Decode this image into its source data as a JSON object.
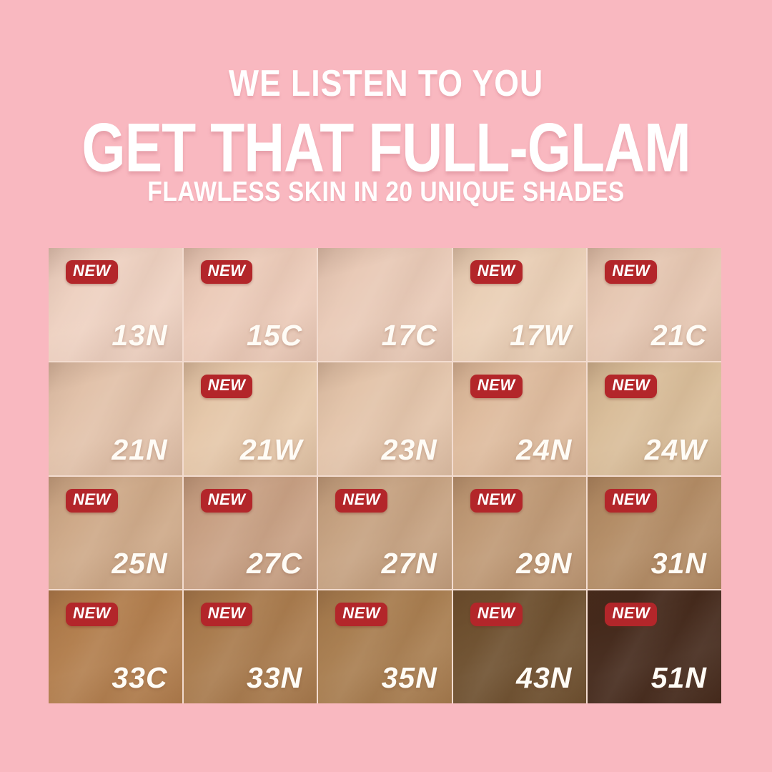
{
  "colors": {
    "background_pink": "#f9b8c0",
    "badge_red": "#b3262a",
    "text_white": "#ffffff",
    "grid_line": "#f3dcd0"
  },
  "header": {
    "tagline": "WE LISTEN TO YOU",
    "title": "GET THAT FULL-GLAM",
    "subtitle": "FLAWLESS SKIN IN 20 UNIQUE SHADES"
  },
  "badge": {
    "label": "NEW"
  },
  "grid": {
    "columns": 5,
    "rows": 4,
    "shades": [
      {
        "code": "13N",
        "new": true,
        "color": "#eed1c1"
      },
      {
        "code": "15C",
        "new": true,
        "color": "#eccbb9"
      },
      {
        "code": "17C",
        "new": false,
        "color": "#e9cab7"
      },
      {
        "code": "17W",
        "new": true,
        "color": "#eacfb6"
      },
      {
        "code": "21C",
        "new": true,
        "color": "#e6c7b2"
      },
      {
        "code": "21N",
        "new": false,
        "color": "#e2c2aa"
      },
      {
        "code": "21W",
        "new": true,
        "color": "#e5c7a9"
      },
      {
        "code": "23N",
        "new": false,
        "color": "#e3c4aa"
      },
      {
        "code": "24N",
        "new": true,
        "color": "#debb9d"
      },
      {
        "code": "24W",
        "new": true,
        "color": "#d9bd99"
      },
      {
        "code": "25N",
        "new": true,
        "color": "#cea988"
      },
      {
        "code": "27C",
        "new": true,
        "color": "#c8a083"
      },
      {
        "code": "27N",
        "new": true,
        "color": "#c6a281"
      },
      {
        "code": "29N",
        "new": true,
        "color": "#bf9975"
      },
      {
        "code": "31N",
        "new": true,
        "color": "#b38c65"
      },
      {
        "code": "33C",
        "new": true,
        "color": "#b27e4d"
      },
      {
        "code": "33N",
        "new": true,
        "color": "#a97b4d"
      },
      {
        "code": "35N",
        "new": true,
        "color": "#a87d4f"
      },
      {
        "code": "43N",
        "new": true,
        "color": "#6e502f"
      },
      {
        "code": "51N",
        "new": true,
        "color": "#44291b"
      }
    ]
  }
}
